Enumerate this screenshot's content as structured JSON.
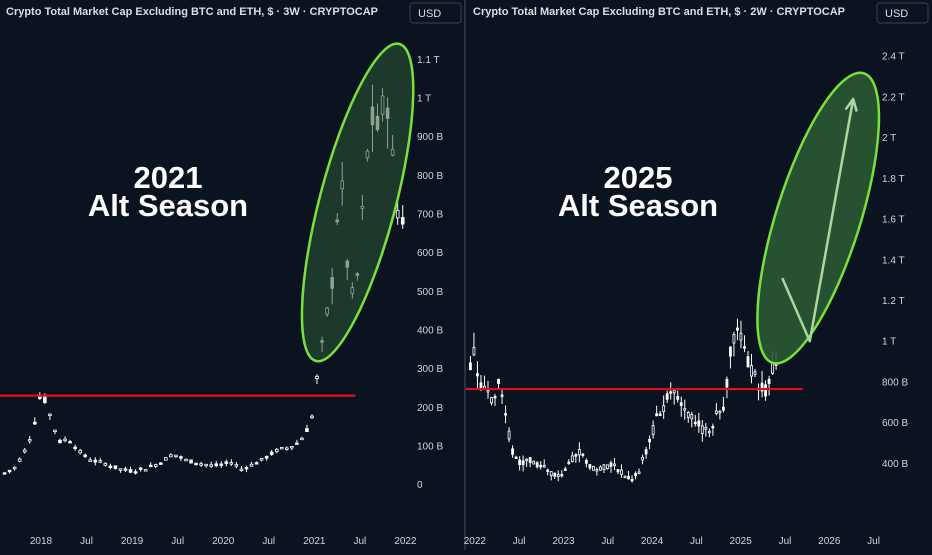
{
  "colors": {
    "background": "#0c1320",
    "candle_body": "#ffffff",
    "support_line": "#e0111c",
    "highlight_fill": "#2a5a34",
    "highlight_stroke": "#7ae03a",
    "arrow": "#a8d7a0",
    "divider": "#2a3140"
  },
  "chart_data": [
    {
      "type": "candlestick",
      "title": "Crypto Total Market Cap Excluding BTC and ETH, $ · 3W · CRYPTOCAP",
      "currency_button": "USD",
      "annotation": {
        "line1": "2021",
        "line2": "Alt Season"
      },
      "y_ticks": [
        "1.1 T",
        "1 T",
        "900 B",
        "800 B",
        "700 B",
        "600 B",
        "500 B",
        "400 B",
        "300 B",
        "200 B",
        "100 B",
        "0"
      ],
      "y_tick_values": [
        1100,
        1000,
        900,
        800,
        700,
        600,
        500,
        400,
        300,
        200,
        100,
        0
      ],
      "y_unit": "B",
      "ylim": [
        -40,
        1140
      ],
      "x_ticks": [
        "2018",
        "Jul",
        "2019",
        "Jul",
        "2020",
        "Jul",
        "2021",
        "Jul",
        "2022"
      ],
      "x_tick_values": [
        2018.0,
        2018.5,
        2019.0,
        2019.5,
        2020.0,
        2020.5,
        2021.0,
        2021.5,
        2022.0
      ],
      "xlim": [
        2017.55,
        2022.05
      ],
      "support_level": 230,
      "support_span": [
        2017.55,
        2021.45
      ],
      "highlight": {
        "from": [
          2021.05,
          350
        ],
        "to": [
          2021.9,
          1110
        ]
      },
      "series_anchors": [
        [
          2017.6,
          30
        ],
        [
          2017.72,
          45
        ],
        [
          2017.85,
          100
        ],
        [
          2017.93,
          160
        ],
        [
          2018.0,
          240
        ],
        [
          2018.05,
          215
        ],
        [
          2018.1,
          180
        ],
        [
          2018.2,
          110
        ],
        [
          2018.3,
          120
        ],
        [
          2018.4,
          90
        ],
        [
          2018.5,
          70
        ],
        [
          2018.6,
          60
        ],
        [
          2018.7,
          55
        ],
        [
          2018.8,
          45
        ],
        [
          2018.9,
          38
        ],
        [
          2019.0,
          35
        ],
        [
          2019.15,
          42
        ],
        [
          2019.3,
          55
        ],
        [
          2019.45,
          80
        ],
        [
          2019.6,
          62
        ],
        [
          2019.75,
          55
        ],
        [
          2019.9,
          48
        ],
        [
          2020.0,
          52
        ],
        [
          2020.1,
          58
        ],
        [
          2020.2,
          40
        ],
        [
          2020.3,
          50
        ],
        [
          2020.4,
          60
        ],
        [
          2020.5,
          75
        ],
        [
          2020.6,
          90
        ],
        [
          2020.7,
          95
        ],
        [
          2020.8,
          105
        ],
        [
          2020.9,
          130
        ],
        [
          2020.98,
          180
        ],
        [
          2021.02,
          260
        ],
        [
          2021.08,
          350
        ],
        [
          2021.15,
          460
        ],
        [
          2021.22,
          560
        ],
        [
          2021.28,
          820
        ],
        [
          2021.33,
          700
        ],
        [
          2021.38,
          500
        ],
        [
          2021.45,
          480
        ],
        [
          2021.5,
          620
        ],
        [
          2021.58,
          850
        ],
        [
          2021.65,
          960
        ],
        [
          2021.72,
          900
        ],
        [
          2021.78,
          1050
        ],
        [
          2021.83,
          920
        ],
        [
          2021.88,
          790
        ],
        [
          2021.92,
          700
        ],
        [
          2021.97,
          690
        ]
      ]
    },
    {
      "type": "candlestick",
      "title": "Crypto Total Market Cap Excluding BTC and ETH, $ · 2W · CRYPTOCAP",
      "currency_button": "USD",
      "annotation": {
        "line1": "2025",
        "line2": "Alt Season"
      },
      "y_ticks": [
        "2.4 T",
        "2.2 T",
        "2 T",
        "1.8 T",
        "1.6 T",
        "1.4 T",
        "1.2 T",
        "1 T",
        "800 B",
        "600 B",
        "400 B"
      ],
      "y_tick_values": [
        2400,
        2200,
        2000,
        1800,
        1600,
        1400,
        1200,
        1000,
        800,
        600,
        400
      ],
      "y_unit": "B",
      "ylim": [
        220,
        2460
      ],
      "x_ticks": [
        "2022",
        "Jul",
        "2023",
        "Jul",
        "2024",
        "Jul",
        "2025",
        "Jul",
        "2026",
        "Jul"
      ],
      "x_tick_values": [
        2022.0,
        2022.5,
        2023.0,
        2023.5,
        2024.0,
        2024.5,
        2025.0,
        2025.5,
        2026.0,
        2026.5
      ],
      "xlim": [
        2021.9,
        2026.55
      ],
      "support_level": 765,
      "support_span": [
        2021.9,
        2025.7
      ],
      "highlight": {
        "from": [
          2025.4,
          950
        ],
        "to": [
          2026.35,
          2260
        ]
      },
      "projection_path": [
        [
          2025.47,
          1310
        ],
        [
          2025.78,
          1000
        ],
        [
          2026.27,
          2190
        ]
      ],
      "series_anchors": [
        [
          2021.95,
          900
        ],
        [
          2022.0,
          960
        ],
        [
          2022.05,
          800
        ],
        [
          2022.12,
          780
        ],
        [
          2022.2,
          720
        ],
        [
          2022.28,
          800
        ],
        [
          2022.35,
          620
        ],
        [
          2022.42,
          460
        ],
        [
          2022.5,
          400
        ],
        [
          2022.6,
          420
        ],
        [
          2022.7,
          390
        ],
        [
          2022.8,
          370
        ],
        [
          2022.9,
          340
        ],
        [
          2023.0,
          340
        ],
        [
          2023.08,
          420
        ],
        [
          2023.18,
          450
        ],
        [
          2023.3,
          380
        ],
        [
          2023.42,
          380
        ],
        [
          2023.55,
          400
        ],
        [
          2023.65,
          360
        ],
        [
          2023.75,
          320
        ],
        [
          2023.85,
          360
        ],
        [
          2023.95,
          480
        ],
        [
          2024.05,
          620
        ],
        [
          2024.15,
          700
        ],
        [
          2024.25,
          760
        ],
        [
          2024.32,
          700
        ],
        [
          2024.4,
          640
        ],
        [
          2024.5,
          600
        ],
        [
          2024.58,
          560
        ],
        [
          2024.66,
          580
        ],
        [
          2024.74,
          640
        ],
        [
          2024.82,
          700
        ],
        [
          2024.88,
          960
        ],
        [
          2024.95,
          1060
        ],
        [
          2025.02,
          1020
        ],
        [
          2025.1,
          880
        ],
        [
          2025.2,
          780
        ],
        [
          2025.28,
          760
        ],
        [
          2025.34,
          860
        ],
        [
          2025.4,
          900
        ]
      ]
    }
  ]
}
